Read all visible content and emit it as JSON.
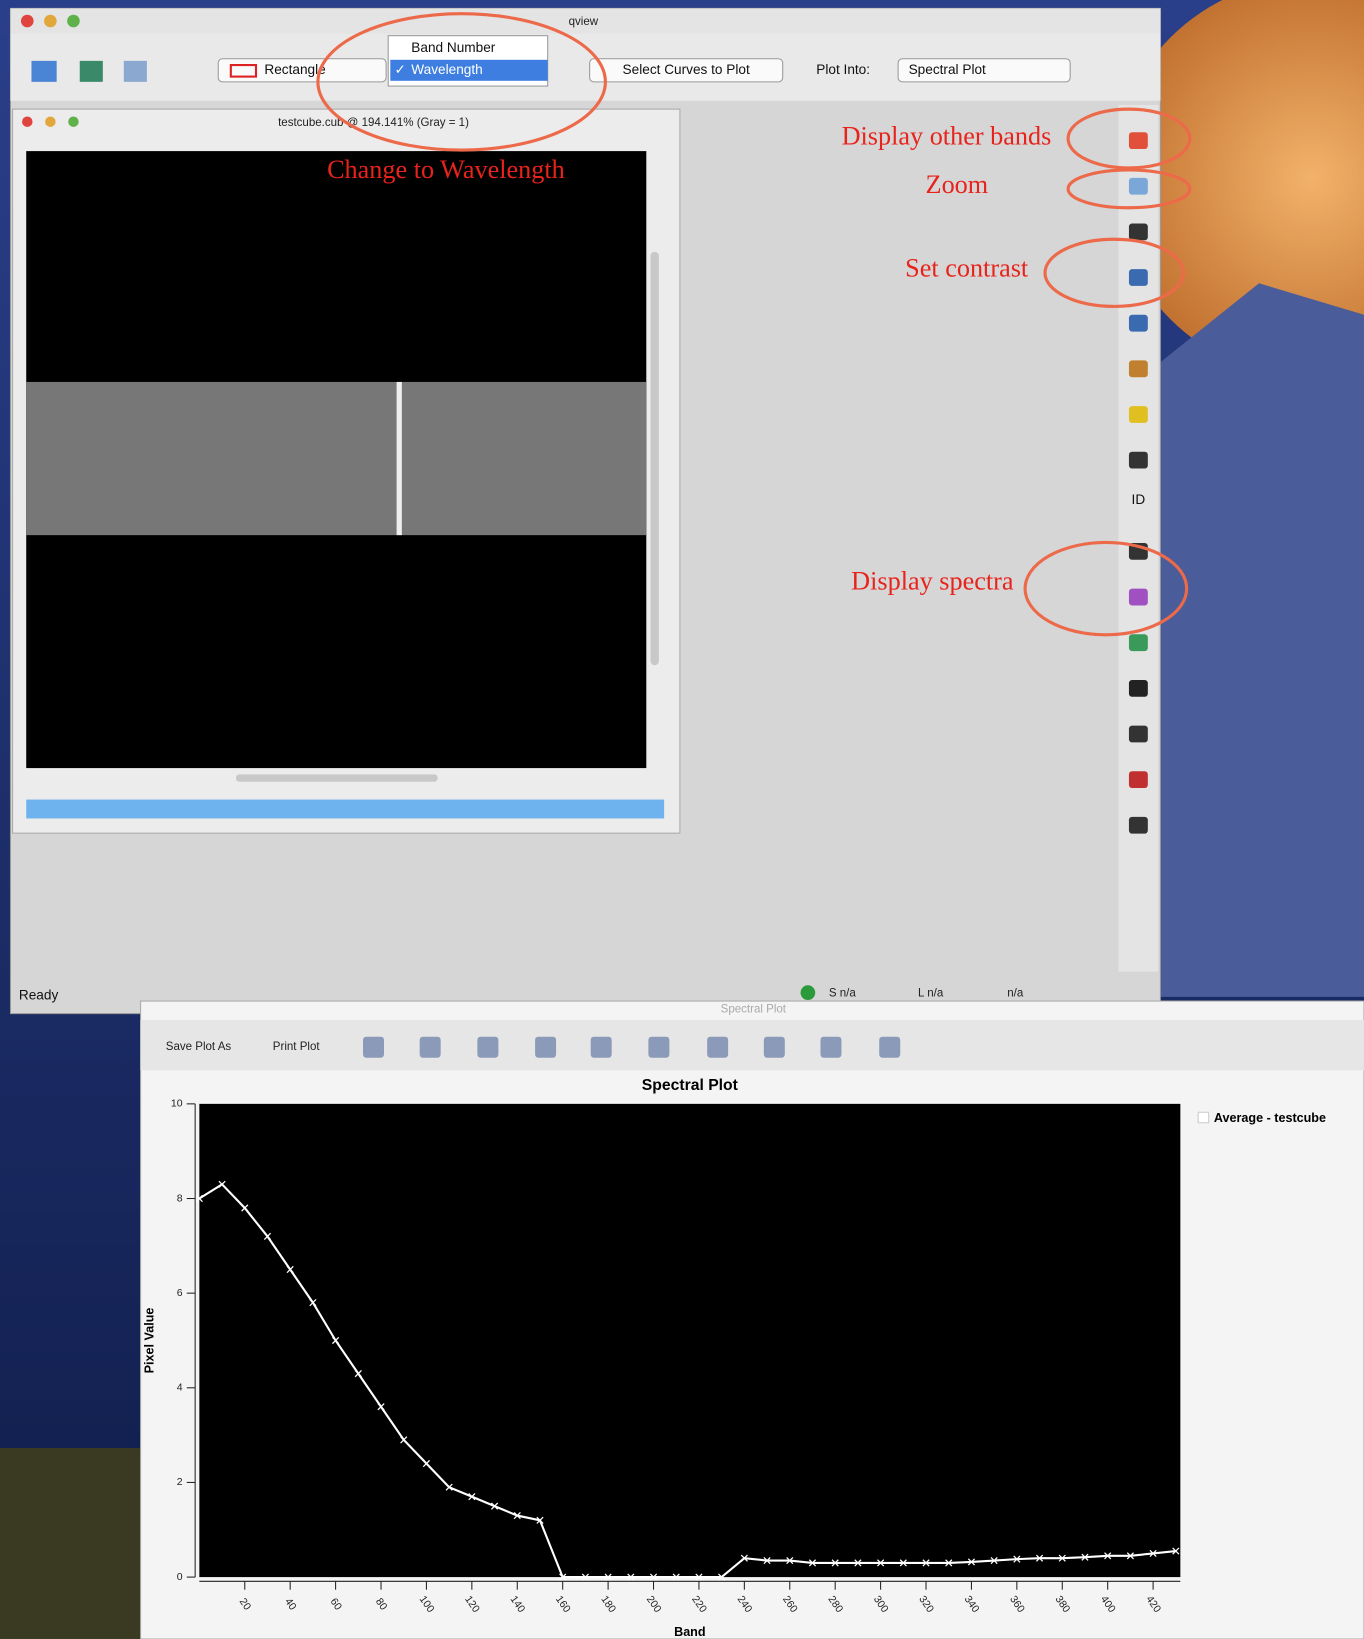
{
  "main_window": {
    "title": "qview",
    "toolbar": {
      "tool_select": "Rectangle",
      "dropdown": [
        "Band Number",
        "Wavelength"
      ],
      "select_curves": "Select Curves to Plot",
      "plot_into_label": "Plot Into:",
      "plot_into": "Spectral Plot"
    },
    "tools": {
      "id": "ID"
    },
    "status": {
      "ready": "Ready",
      "sample": "S n/a",
      "line": "L n/a",
      "other": "n/a"
    }
  },
  "cube_window": {
    "title": "testcube.cub @ 194.141% (Gray = 1)"
  },
  "annotations": {
    "wavelength": "Change to Wavelength",
    "bands": "Display other bands",
    "zoom": "Zoom",
    "contrast": "Set contrast",
    "spectra": "Display spectra"
  },
  "plot_window": {
    "title": "Spectral Plot",
    "buttons": [
      "Save Plot As",
      "Print Plot"
    ],
    "chart_data": {
      "type": "line",
      "title": "Spectral Plot",
      "x_label": "Band",
      "y_label": "Pixel Value",
      "x": [
        0,
        10,
        20,
        30,
        40,
        50,
        60,
        70,
        80,
        90,
        100,
        110,
        120,
        130,
        140,
        150,
        160,
        170,
        180,
        190,
        200,
        210,
        220,
        230,
        240,
        250,
        260,
        270,
        280,
        290,
        300,
        310,
        320,
        330,
        340,
        350,
        360,
        370,
        380,
        390,
        400,
        410,
        420,
        430
      ],
      "series": [
        {
          "name": "Average - testcube",
          "color": "#ffffff",
          "values": [
            8.0,
            8.3,
            7.8,
            7.2,
            6.5,
            5.8,
            5.0,
            4.3,
            3.6,
            2.9,
            2.4,
            1.9,
            1.7,
            1.5,
            1.3,
            1.2,
            0,
            0,
            0,
            0,
            0,
            0,
            0,
            0,
            0.4,
            0.35,
            0.35,
            0.3,
            0.3,
            0.3,
            0.3,
            0.3,
            0.3,
            0.3,
            0.32,
            0.35,
            0.38,
            0.4,
            0.4,
            0.42,
            0.45,
            0.45,
            0.5,
            0.55
          ]
        }
      ],
      "xlim": [
        0,
        432
      ],
      "ylim": [
        0,
        10
      ],
      "xticks": [
        20,
        40,
        60,
        80,
        100,
        120,
        140,
        160,
        180,
        200,
        220,
        240,
        260,
        280,
        300,
        320,
        340,
        360,
        380,
        400,
        420
      ],
      "yticks": [
        0,
        2,
        4,
        6,
        8,
        10
      ],
      "background": "#000000"
    }
  }
}
